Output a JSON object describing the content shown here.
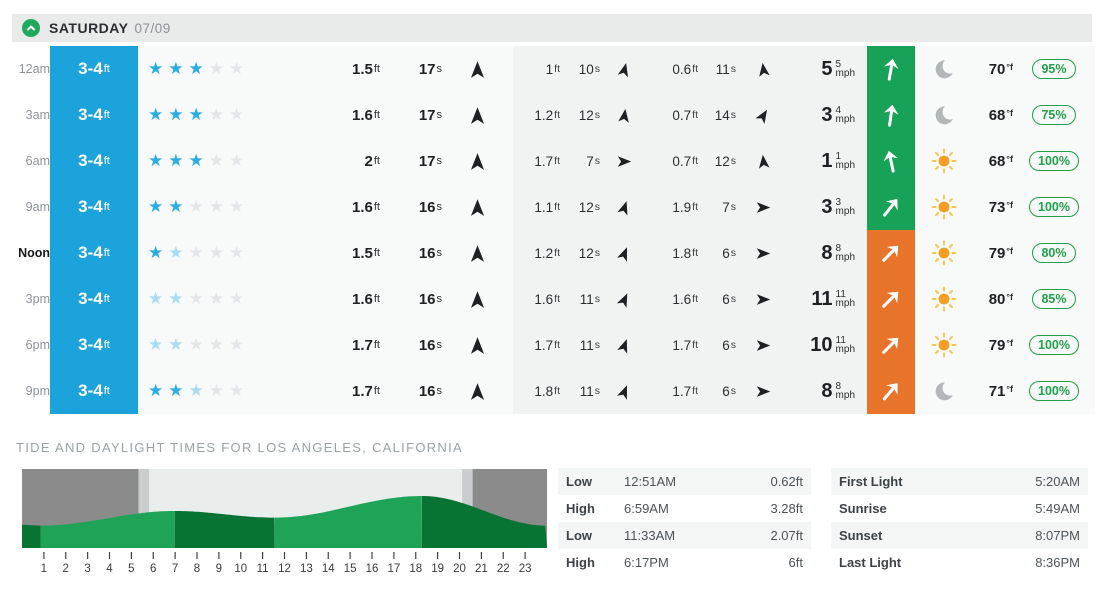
{
  "header": {
    "day": "SATURDAY",
    "date": "07/09"
  },
  "forecast": {
    "units": {
      "surf": "ft",
      "height": "ft",
      "period": "s",
      "wind": "mph",
      "temp": "°f"
    },
    "rows": [
      {
        "time": "12am",
        "emphasis": false,
        "surf": "3-4",
        "stars": {
          "filled": 3,
          "faded": 0
        },
        "swells": [
          {
            "height": "1.5",
            "period": "17",
            "dir": 0
          },
          {
            "height": "1",
            "period": "10",
            "dir": 14
          },
          {
            "height": "0.6",
            "period": "11",
            "dir": -8
          }
        ],
        "wind": {
          "speed": "5",
          "gust": "5",
          "dir": 10,
          "bg": "green"
        },
        "weather": "moon",
        "temp": "70",
        "prob": "95%"
      },
      {
        "time": "3am",
        "emphasis": false,
        "surf": "3-4",
        "stars": {
          "filled": 3,
          "faded": 0
        },
        "swells": [
          {
            "height": "1.6",
            "period": "17",
            "dir": 0
          },
          {
            "height": "1.2",
            "period": "12",
            "dir": 8
          },
          {
            "height": "0.7",
            "period": "14",
            "dir": 32
          }
        ],
        "wind": {
          "speed": "3",
          "gust": "4",
          "dir": 8,
          "bg": "green"
        },
        "weather": "moon",
        "temp": "68",
        "prob": "75%"
      },
      {
        "time": "6am",
        "emphasis": false,
        "surf": "3-4",
        "stars": {
          "filled": 3,
          "faded": 0
        },
        "swells": [
          {
            "height": "2",
            "period": "17",
            "dir": 0
          },
          {
            "height": "1.7",
            "period": "7",
            "dir": 90
          },
          {
            "height": "0.7",
            "period": "12",
            "dir": -6
          }
        ],
        "wind": {
          "speed": "1",
          "gust": "1",
          "dir": -12,
          "bg": "green"
        },
        "weather": "sun",
        "temp": "68",
        "prob": "100%"
      },
      {
        "time": "9am",
        "emphasis": false,
        "surf": "3-4",
        "stars": {
          "filled": 2,
          "faded": 0
        },
        "swells": [
          {
            "height": "1.6",
            "period": "16",
            "dir": 0
          },
          {
            "height": "1.1",
            "period": "12",
            "dir": 18
          },
          {
            "height": "1.9",
            "period": "7",
            "dir": 90
          }
        ],
        "wind": {
          "speed": "3",
          "gust": "3",
          "dir": 38,
          "bg": "green"
        },
        "weather": "sun",
        "temp": "73",
        "prob": "100%"
      },
      {
        "time": "Noon",
        "emphasis": true,
        "surf": "3-4",
        "stars": {
          "filled": 1,
          "faded": 1
        },
        "swells": [
          {
            "height": "1.5",
            "period": "16",
            "dir": 0
          },
          {
            "height": "1.2",
            "period": "12",
            "dir": 22
          },
          {
            "height": "1.8",
            "period": "6",
            "dir": 90
          }
        ],
        "wind": {
          "speed": "8",
          "gust": "8",
          "dir": 45,
          "bg": "orange"
        },
        "weather": "sun",
        "temp": "79",
        "prob": "80%"
      },
      {
        "time": "3pm",
        "emphasis": false,
        "surf": "3-4",
        "stars": {
          "filled": 0,
          "faded": 2
        },
        "swells": [
          {
            "height": "1.6",
            "period": "16",
            "dir": 0
          },
          {
            "height": "1.6",
            "period": "11",
            "dir": 25
          },
          {
            "height": "1.6",
            "period": "6",
            "dir": 90
          }
        ],
        "wind": {
          "speed": "11",
          "gust": "11",
          "dir": 45,
          "bg": "orange"
        },
        "weather": "sun",
        "temp": "80",
        "prob": "85%"
      },
      {
        "time": "6pm",
        "emphasis": false,
        "surf": "3-4",
        "stars": {
          "filled": 0,
          "faded": 2
        },
        "swells": [
          {
            "height": "1.7",
            "period": "16",
            "dir": 0
          },
          {
            "height": "1.7",
            "period": "11",
            "dir": 20
          },
          {
            "height": "1.7",
            "period": "6",
            "dir": 90
          }
        ],
        "wind": {
          "speed": "10",
          "gust": "11",
          "dir": 45,
          "bg": "orange"
        },
        "weather": "sun",
        "temp": "79",
        "prob": "100%"
      },
      {
        "time": "9pm",
        "emphasis": false,
        "surf": "3-4",
        "stars": {
          "filled": 2,
          "faded": 1
        },
        "swells": [
          {
            "height": "1.7",
            "period": "16",
            "dir": 0
          },
          {
            "height": "1.8",
            "period": "11",
            "dir": 22
          },
          {
            "height": "1.7",
            "period": "6",
            "dir": 90
          }
        ],
        "wind": {
          "speed": "8",
          "gust": "8",
          "dir": 40,
          "bg": "orange"
        },
        "weather": "moon",
        "temp": "71",
        "prob": "100%"
      }
    ]
  },
  "tide": {
    "title": "TIDE AND DAYLIGHT TIMES FOR LOS ANGELES, CALIFORNIA",
    "chart_data": {
      "type": "area",
      "x_ticks": [
        1,
        2,
        3,
        4,
        5,
        6,
        7,
        8,
        9,
        10,
        11,
        12,
        13,
        14,
        15,
        16,
        17,
        18,
        19,
        20,
        21,
        22,
        23
      ],
      "x_range_hours": [
        0,
        24
      ],
      "curve": [
        {
          "hour": 0.0,
          "ft": 0.75
        },
        {
          "hour": 0.85,
          "ft": 0.62
        },
        {
          "hour": 6.98,
          "ft": 3.28
        },
        {
          "hour": 11.55,
          "ft": 2.07
        },
        {
          "hour": 18.28,
          "ft": 6.0
        },
        {
          "hour": 24.0,
          "ft": 0.6
        }
      ],
      "daylight": {
        "first_light_hour": 5.33,
        "sunrise_hour": 5.82,
        "sunset_hour": 20.12,
        "last_light_hour": 20.6
      },
      "colors": {
        "night": "#8b8b8b",
        "twilight": "#c9cdcd",
        "day": "#e9eeec",
        "tide_dark": "#077434",
        "tide_mid": "#1fa357"
      }
    },
    "tide_table": [
      {
        "label": "Low",
        "time": "12:51AM",
        "height": "0.62ft"
      },
      {
        "label": "High",
        "time": "6:59AM",
        "height": "3.28ft"
      },
      {
        "label": "Low",
        "time": "11:33AM",
        "height": "2.07ft"
      },
      {
        "label": "High",
        "time": "6:17PM",
        "height": "6ft"
      }
    ],
    "sun_table": [
      {
        "label": "First Light",
        "time": "5:20AM"
      },
      {
        "label": "Sunrise",
        "time": "5:49AM"
      },
      {
        "label": "Sunset",
        "time": "8:07PM"
      },
      {
        "label": "Last Light",
        "time": "8:36PM"
      }
    ]
  },
  "colors": {
    "surf_blue": "#1ca3dc",
    "star_filled": "#2bace3",
    "star_faded": "#a9dcf3",
    "star_empty": "#e3e6e8",
    "wind_green": "#17a257",
    "wind_orange": "#e8742b",
    "badge_green": "#1fa04b",
    "header_green": "#1ea95c"
  }
}
